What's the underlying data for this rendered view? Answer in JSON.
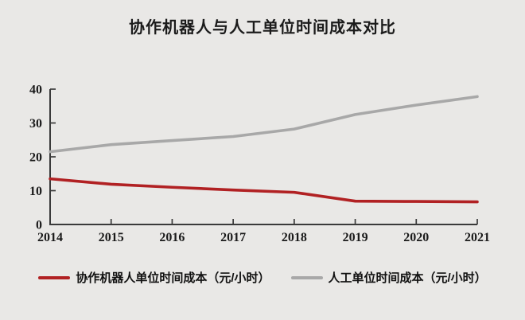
{
  "page": {
    "background": "#e9e8e6"
  },
  "title": "协作机器人与人工单位时间成本对比",
  "colors": {
    "background": "#e9e8e6",
    "axis": "#3a3a3a",
    "tick_text": "#1a1a1a",
    "robot_red": "#b12123",
    "labor_gray": "#a8a8a8"
  },
  "legend": {
    "items": [
      {
        "label": "协作机器人单位时间成本（元/小时）",
        "color": "#b12123"
      },
      {
        "label": "人工单位时间成本（元/小时）",
        "color": "#a8a8a8"
      }
    ]
  },
  "chart_data": {
    "type": "line",
    "title": "协作机器人与人工单位时间成本对比",
    "categories": [
      "2014",
      "2015",
      "2016",
      "2017",
      "2018",
      "2019",
      "2020",
      "2021"
    ],
    "series": [
      {
        "name": "协作机器人单位时间成本（元/小时）",
        "color": "#b12123",
        "values": [
          13.5,
          11.9,
          11.0,
          10.2,
          9.5,
          6.9,
          6.8,
          6.7
        ]
      },
      {
        "name": "人工单位时间成本（元/小时）",
        "color": "#a8a8a8",
        "values": [
          21.5,
          23.6,
          24.8,
          26.0,
          28.2,
          32.5,
          35.3,
          37.8
        ]
      }
    ],
    "xlabel": "",
    "ylabel": "",
    "ylim": [
      0,
      40
    ],
    "yticks": [
      0,
      10,
      20,
      30,
      40
    ],
    "grid": false,
    "legend_position": "bottom"
  }
}
